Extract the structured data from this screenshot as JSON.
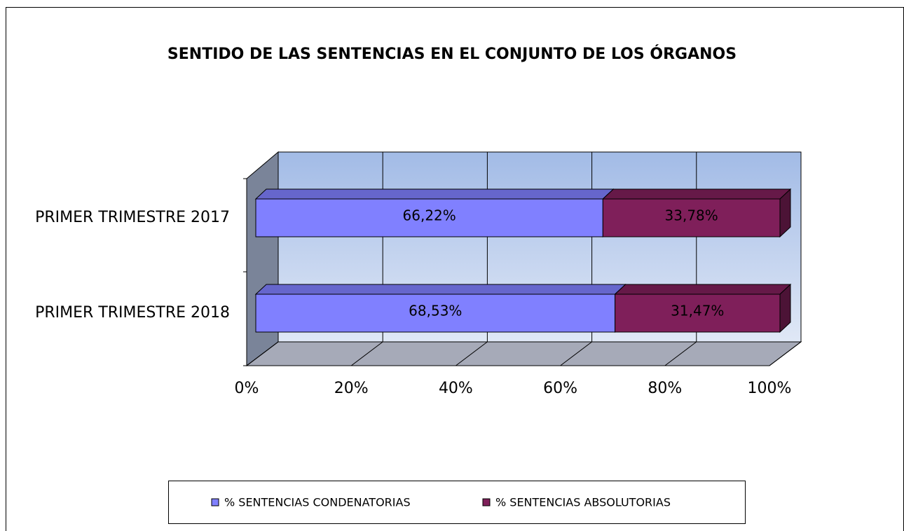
{
  "chart_data": {
    "type": "bar",
    "orientation": "horizontal",
    "stacked": true,
    "title": "SENTIDO DE LAS SENTENCIAS EN EL CONJUNTO DE LOS ÓRGANOS",
    "categories": [
      "PRIMER TRIMESTRE 2017",
      "PRIMER TRIMESTRE 2018"
    ],
    "series": [
      {
        "name": "% SENTENCIAS CONDENATORIAS",
        "color": "#8080ff",
        "values": [
          66.22,
          68.53
        ],
        "value_labels": [
          "66,22%",
          "68,53%"
        ]
      },
      {
        "name": "% SENTENCIAS ABSOLUTORIAS",
        "color": "#7f1f5a",
        "values": [
          33.78,
          31.47
        ],
        "value_labels": [
          "33,78%",
          "31,47%"
        ]
      }
    ],
    "xlim": [
      0,
      100
    ],
    "xticks": [
      {
        "value": 0,
        "label": "0%"
      },
      {
        "value": 20,
        "label": "20%"
      },
      {
        "value": 40,
        "label": "40%"
      },
      {
        "value": 60,
        "label": "60%"
      },
      {
        "value": 80,
        "label": "80%"
      },
      {
        "value": 100,
        "label": "100%"
      }
    ],
    "grid": true,
    "legend": "bottom"
  }
}
